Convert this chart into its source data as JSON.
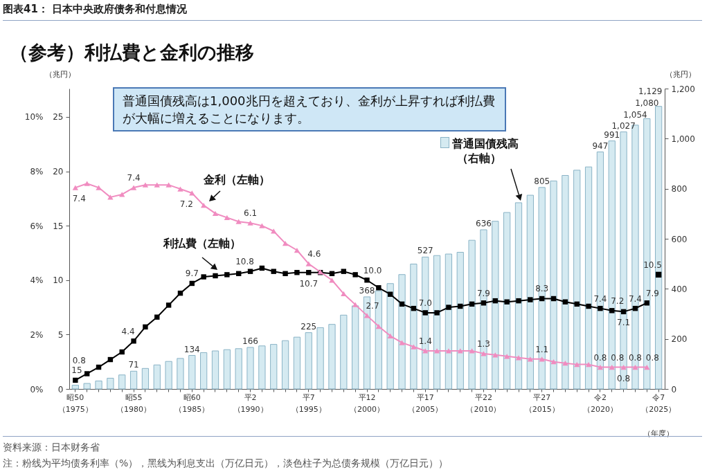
{
  "chart_data": {
    "type": "bar",
    "title": "图表41：  日本中央政府债务和付息情况",
    "subtitle": "（参考）利払費と金利の推移",
    "xlabel": "（年度）",
    "ylabel": "（兆円）",
    "y2label": "（兆円）",
    "categories": [
      "昭50\n（1975）",
      null,
      null,
      null,
      null,
      "昭55\n（1980）",
      null,
      null,
      null,
      null,
      "昭60\n（1985）",
      null,
      null,
      null,
      null,
      "平2\n（1990）",
      null,
      null,
      null,
      null,
      "平7\n（1995）",
      null,
      null,
      null,
      null,
      "平12\n（2000）",
      null,
      null,
      null,
      null,
      "平17\n（2005）",
      null,
      null,
      null,
      null,
      "平22\n（2010）",
      null,
      null,
      null,
      null,
      "平27\n（2015）",
      null,
      null,
      null,
      null,
      "令2\n（2020）",
      null,
      null,
      null,
      null,
      "令7\n（2025）"
    ],
    "ylim": [
      0,
      27.6
    ],
    "yticks": [
      0,
      5,
      10,
      15,
      20,
      25
    ],
    "y2lim": [
      0,
      1200
    ],
    "y2ticks": [
      0,
      200,
      400,
      600,
      800,
      {
        "value": 1000,
        "label": "1,000"
      },
      {
        "value": 1200,
        "label": "1,200"
      }
    ],
    "y3lim": [
      0,
      11.04
    ],
    "y3ticks": [
      {
        "value": 0,
        "label": "0%"
      },
      {
        "value": 2,
        "label": "2%"
      },
      {
        "value": 4,
        "label": "4%"
      },
      {
        "value": 6,
        "label": "6%"
      },
      {
        "value": 8,
        "label": "8%"
      },
      {
        "value": 10,
        "label": "10%"
      }
    ],
    "series": [
      {
        "name": "普通国債残高（右軸）",
        "type": "bar",
        "axis": "y2",
        "color": "#d5eaf1",
        "values": [
          15,
          22,
          32,
          43,
          56,
          71,
          82,
          96,
          110,
          122,
          134,
          145,
          152,
          157,
          161,
          166,
          172,
          178,
          193,
          207,
          225,
          245,
          258,
          295,
          332,
          368,
          392,
          421,
          457,
          499,
          527,
          533,
          539,
          546,
          594,
          636,
          670,
          705,
          744,
          774,
          805,
          831,
          853,
          874,
          887,
          947,
          991,
          1027,
          1054,
          1080,
          1129
        ],
        "value_labels": [
          "15",
          null,
          null,
          null,
          null,
          "71",
          null,
          null,
          null,
          null,
          "134",
          null,
          null,
          null,
          null,
          "166",
          null,
          null,
          null,
          null,
          "225",
          null,
          null,
          null,
          null,
          "368",
          null,
          null,
          null,
          null,
          "527",
          null,
          null,
          null,
          null,
          "636",
          null,
          null,
          null,
          null,
          "805",
          null,
          null,
          null,
          null,
          "947",
          "991",
          "1,027",
          "1,054",
          "1,080",
          "1,129"
        ]
      },
      {
        "name": "利払費（左軸）",
        "type": "line",
        "axis": "y",
        "color": "#000000",
        "marker": "square",
        "values": [
          0.8,
          1.4,
          2.0,
          2.7,
          3.4,
          4.4,
          5.7,
          6.6,
          7.7,
          8.8,
          9.7,
          10.3,
          10.4,
          10.5,
          10.6,
          10.8,
          11.1,
          10.8,
          10.6,
          10.7,
          10.7,
          10.7,
          10.6,
          10.8,
          10.5,
          10.0,
          9.3,
          8.7,
          7.8,
          7.4,
          7.0,
          7.0,
          7.5,
          7.6,
          7.8,
          7.9,
          8.1,
          8.0,
          8.1,
          8.2,
          8.3,
          8.3,
          8.0,
          7.8,
          7.6,
          7.4,
          7.2,
          7.1,
          7.4,
          7.9,
          null
        ],
        "value_labels": [
          "0.8",
          null,
          null,
          null,
          null,
          "4.4",
          null,
          null,
          null,
          null,
          "9.7",
          null,
          null,
          null,
          null,
          "10.8",
          null,
          null,
          null,
          null,
          "10.7",
          null,
          null,
          null,
          null,
          "10.0",
          null,
          null,
          null,
          null,
          "7.0",
          null,
          null,
          null,
          null,
          "7.9",
          null,
          null,
          null,
          null,
          "8.3",
          null,
          null,
          null,
          null,
          "7.4",
          "7.2",
          "7.1",
          "7.4",
          "7.9",
          null
        ]
      },
      {
        "type": "scatter",
        "axis": "y",
        "color": "#000000",
        "marker": "square",
        "values": [
          null,
          null,
          null,
          null,
          null,
          null,
          null,
          null,
          null,
          null,
          null,
          null,
          null,
          null,
          null,
          null,
          null,
          null,
          null,
          null,
          null,
          null,
          null,
          null,
          null,
          null,
          null,
          null,
          null,
          null,
          null,
          null,
          null,
          null,
          null,
          null,
          null,
          null,
          null,
          null,
          null,
          null,
          null,
          null,
          null,
          null,
          null,
          null,
          null,
          null,
          10.5
        ],
        "value_labels": [
          null,
          null,
          null,
          null,
          null,
          null,
          null,
          null,
          null,
          null,
          null,
          null,
          null,
          null,
          null,
          null,
          null,
          null,
          null,
          null,
          null,
          null,
          null,
          null,
          null,
          null,
          null,
          null,
          null,
          null,
          null,
          null,
          null,
          null,
          null,
          null,
          null,
          null,
          null,
          null,
          null,
          null,
          null,
          null,
          null,
          null,
          null,
          null,
          null,
          null,
          "10.5"
        ]
      },
      {
        "name": "金利（左軸）",
        "type": "line",
        "axis": "y3",
        "color": "#f08cc0",
        "marker": "triangle",
        "values": [
          7.4,
          7.55,
          7.4,
          7.05,
          7.15,
          7.4,
          7.5,
          7.5,
          7.5,
          7.35,
          7.2,
          6.75,
          6.45,
          6.3,
          6.15,
          6.1,
          6.0,
          5.8,
          5.35,
          5.1,
          4.6,
          4.3,
          4.0,
          3.5,
          3.1,
          2.7,
          2.3,
          1.95,
          1.7,
          1.55,
          1.4,
          1.4,
          1.4,
          1.4,
          1.4,
          1.3,
          1.25,
          1.2,
          1.15,
          1.1,
          1.1,
          1.0,
          0.95,
          0.9,
          0.9,
          0.8,
          0.8,
          0.8,
          0.8,
          0.8,
          null
        ],
        "value_labels": [
          "7.4",
          null,
          null,
          null,
          null,
          "7.4",
          null,
          null,
          null,
          null,
          "7.2",
          null,
          null,
          null,
          null,
          "6.1",
          null,
          null,
          null,
          null,
          "4.6",
          null,
          null,
          null,
          null,
          "2.7",
          null,
          null,
          null,
          null,
          "1.4",
          null,
          null,
          null,
          null,
          "1.3",
          null,
          null,
          null,
          null,
          "1.1",
          null,
          null,
          null,
          null,
          "0.8",
          "0.8",
          "0.8",
          "0.8",
          "0.8",
          null
        ]
      }
    ],
    "annotations": [
      "普通国債残高は1,000兆円を超えており、金利が上昇すれば利払費が大幅に増えることになります。",
      "资料来源：日本财务省",
      "注：粉线为平均债务利率（%），黑线为利息支出（万亿日元），淡色柱子为总债务规模（万亿日元））"
    ]
  }
}
